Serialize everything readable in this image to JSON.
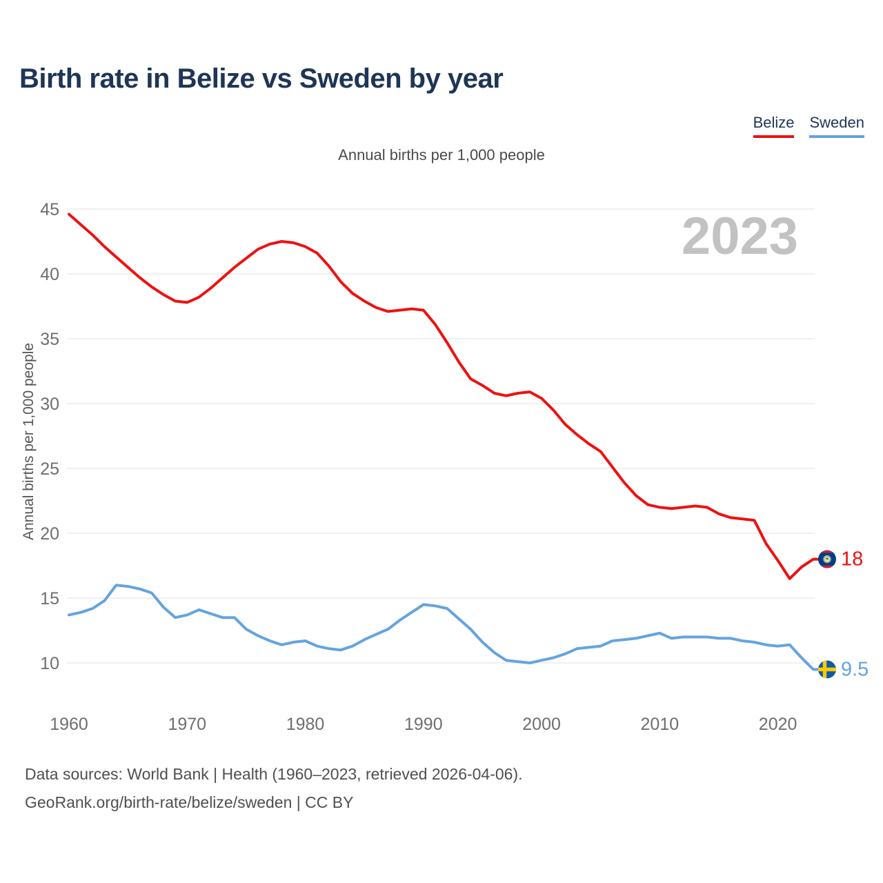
{
  "page": {
    "title": "Birth rate in Belize vs Sweden by year",
    "subtitle": "Annual births per 1,000 people",
    "footer_line1": "Data sources: World Bank | Health (1960–2023, retrieved 2026-04-06).",
    "footer_line2": "GeoRank.org/birth-rate/belize/sweden | CC BY"
  },
  "legend": {
    "items": [
      {
        "label": "Belize",
        "color": "#ee1111"
      },
      {
        "label": "Sweden",
        "color": "#64a3e0"
      }
    ]
  },
  "colors": {
    "title": "#1e3556",
    "grid": "#ececec",
    "tick_label": "#6e6e6e",
    "axis_label": "#555555",
    "watermark": "#c2c2c2",
    "footer": "#4f4f4f"
  },
  "chart_data": {
    "type": "line",
    "title": "Annual births per 1,000 people",
    "ylabel": "Annual births per 1,000 people",
    "xlabel": "",
    "watermark": "2023",
    "grid": "horizontal",
    "legend_position": "top-right",
    "xlim": [
      1960,
      2023
    ],
    "ylim": [
      8.5,
      46
    ],
    "x_ticks": [
      1960,
      1970,
      1980,
      1990,
      2000,
      2010,
      2020
    ],
    "y_ticks": [
      10,
      15,
      20,
      25,
      30,
      35,
      40,
      45
    ],
    "x": [
      1960,
      1961,
      1962,
      1963,
      1964,
      1965,
      1966,
      1967,
      1968,
      1969,
      1970,
      1971,
      1972,
      1973,
      1974,
      1975,
      1976,
      1977,
      1978,
      1979,
      1980,
      1981,
      1982,
      1983,
      1984,
      1985,
      1986,
      1987,
      1988,
      1989,
      1990,
      1991,
      1992,
      1993,
      1994,
      1995,
      1996,
      1997,
      1998,
      1999,
      2000,
      2001,
      2002,
      2003,
      2004,
      2005,
      2006,
      2007,
      2008,
      2009,
      2010,
      2011,
      2012,
      2013,
      2014,
      2015,
      2016,
      2017,
      2018,
      2019,
      2020,
      2021,
      2022,
      2023
    ],
    "series": [
      {
        "name": "Belize",
        "color": "#ee1111",
        "end_label": "18",
        "flag": "belize",
        "values": [
          44.6,
          43.8,
          43.0,
          42.1,
          41.3,
          40.5,
          39.7,
          39.0,
          38.4,
          37.9,
          37.8,
          38.2,
          38.9,
          39.7,
          40.5,
          41.2,
          41.9,
          42.3,
          42.5,
          42.4,
          42.1,
          41.6,
          40.6,
          39.4,
          38.5,
          37.9,
          37.4,
          37.1,
          37.2,
          37.3,
          37.2,
          36.1,
          34.7,
          33.2,
          31.9,
          31.4,
          30.8,
          30.6,
          30.8,
          30.9,
          30.4,
          29.5,
          28.4,
          27.6,
          26.9,
          26.3,
          25.1,
          23.9,
          22.9,
          22.2,
          22.0,
          21.9,
          22.0,
          22.1,
          22.0,
          21.5,
          21.2,
          21.1,
          21.0,
          19.2,
          17.9,
          16.5,
          17.4,
          18.0
        ]
      },
      {
        "name": "Sweden",
        "color": "#64a3e0",
        "end_label": "9.5",
        "flag": "sweden",
        "values": [
          13.7,
          13.9,
          14.2,
          14.8,
          16.0,
          15.9,
          15.7,
          15.4,
          14.3,
          13.5,
          13.7,
          14.1,
          13.8,
          13.5,
          13.5,
          12.6,
          12.1,
          11.7,
          11.4,
          11.6,
          11.7,
          11.3,
          11.1,
          11.0,
          11.3,
          11.8,
          12.2,
          12.6,
          13.3,
          13.9,
          14.5,
          14.4,
          14.2,
          13.4,
          12.6,
          11.6,
          10.8,
          10.2,
          10.1,
          10.0,
          10.2,
          10.4,
          10.7,
          11.1,
          11.2,
          11.3,
          11.7,
          11.8,
          11.9,
          12.1,
          12.3,
          11.9,
          12.0,
          12.0,
          12.0,
          11.9,
          11.9,
          11.7,
          11.6,
          11.4,
          11.3,
          11.4,
          10.4,
          9.5
        ]
      }
    ]
  }
}
